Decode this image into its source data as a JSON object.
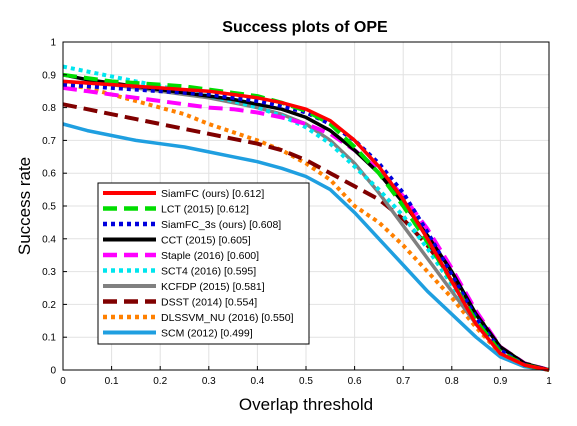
{
  "chart_data": {
    "type": "line",
    "title": "Success plots of OPE",
    "xlabel": "Overlap threshold",
    "ylabel": "Success rate",
    "xlim": [
      0,
      1
    ],
    "ylim": [
      0,
      1
    ],
    "x_ticks": [
      "0",
      "0.1",
      "0.2",
      "0.3",
      "0.4",
      "0.5",
      "0.6",
      "0.7",
      "0.8",
      "0.9",
      "1"
    ],
    "y_ticks": [
      "0",
      "0.1",
      "0.2",
      "0.3",
      "0.4",
      "0.5",
      "0.6",
      "0.7",
      "0.8",
      "0.9",
      "1"
    ],
    "grid": true,
    "legend_position": "lower-left",
    "x": [
      0,
      0.05,
      0.1,
      0.15,
      0.2,
      0.25,
      0.3,
      0.35,
      0.4,
      0.45,
      0.5,
      0.55,
      0.6,
      0.65,
      0.7,
      0.75,
      0.8,
      0.85,
      0.9,
      0.95,
      1
    ],
    "series": [
      {
        "name": "SiamFC (ours) [0.612]",
        "color": "#ff0000",
        "dash": "solid",
        "values": [
          0.88,
          0.875,
          0.87,
          0.865,
          0.86,
          0.855,
          0.85,
          0.84,
          0.83,
          0.815,
          0.795,
          0.76,
          0.7,
          0.62,
          0.52,
          0.4,
          0.27,
          0.14,
          0.05,
          0.015,
          0
        ]
      },
      {
        "name": "LCT (2015) [0.612]",
        "color": "#00dd00",
        "dash": "dash",
        "values": [
          0.9,
          0.89,
          0.88,
          0.875,
          0.87,
          0.865,
          0.855,
          0.845,
          0.835,
          0.815,
          0.79,
          0.75,
          0.68,
          0.6,
          0.5,
          0.39,
          0.27,
          0.15,
          0.055,
          0.015,
          0
        ]
      },
      {
        "name": "SiamFC_3s (ours) [0.608]",
        "color": "#0000dd",
        "dash": "dot",
        "values": [
          0.87,
          0.865,
          0.86,
          0.855,
          0.85,
          0.845,
          0.84,
          0.83,
          0.82,
          0.805,
          0.785,
          0.75,
          0.7,
          0.63,
          0.54,
          0.42,
          0.29,
          0.16,
          0.06,
          0.015,
          0
        ]
      },
      {
        "name": "CCT (2015) [0.605]",
        "color": "#000000",
        "dash": "solid",
        "values": [
          0.9,
          0.885,
          0.875,
          0.865,
          0.855,
          0.845,
          0.835,
          0.825,
          0.81,
          0.795,
          0.77,
          0.73,
          0.67,
          0.6,
          0.51,
          0.41,
          0.3,
          0.17,
          0.07,
          0.02,
          0
        ]
      },
      {
        "name": "Staple (2016) [0.600]",
        "color": "#ff00ff",
        "dash": "dash",
        "values": [
          0.86,
          0.85,
          0.84,
          0.83,
          0.82,
          0.81,
          0.8,
          0.795,
          0.785,
          0.77,
          0.75,
          0.72,
          0.67,
          0.61,
          0.53,
          0.43,
          0.31,
          0.18,
          0.07,
          0.02,
          0
        ]
      },
      {
        "name": "SCT4 (2016) [0.595]",
        "color": "#00e5ee",
        "dash": "dot",
        "values": [
          0.925,
          0.91,
          0.895,
          0.88,
          0.865,
          0.85,
          0.835,
          0.82,
          0.8,
          0.775,
          0.74,
          0.69,
          0.62,
          0.55,
          0.47,
          0.37,
          0.26,
          0.15,
          0.06,
          0.015,
          0
        ]
      },
      {
        "name": "KCFDP (2015) [0.581]",
        "color": "#808080",
        "dash": "solid",
        "values": [
          0.88,
          0.875,
          0.87,
          0.86,
          0.85,
          0.84,
          0.83,
          0.815,
          0.8,
          0.78,
          0.75,
          0.7,
          0.63,
          0.54,
          0.44,
          0.34,
          0.24,
          0.14,
          0.05,
          0.015,
          0
        ]
      },
      {
        "name": "DSST (2014) [0.554]",
        "color": "#800000",
        "dash": "dash",
        "values": [
          0.81,
          0.795,
          0.78,
          0.765,
          0.75,
          0.735,
          0.72,
          0.705,
          0.69,
          0.67,
          0.64,
          0.6,
          0.56,
          0.52,
          0.46,
          0.38,
          0.28,
          0.17,
          0.07,
          0.02,
          0
        ]
      },
      {
        "name": "DLSSVM_NU (2016) [0.550]",
        "color": "#ff8000",
        "dash": "dot",
        "values": [
          0.87,
          0.86,
          0.84,
          0.82,
          0.8,
          0.78,
          0.75,
          0.725,
          0.7,
          0.67,
          0.63,
          0.58,
          0.5,
          0.45,
          0.38,
          0.3,
          0.22,
          0.13,
          0.05,
          0.015,
          0
        ]
      },
      {
        "name": "SCM (2012) [0.499]",
        "color": "#1f9fe0",
        "dash": "solid",
        "values": [
          0.75,
          0.73,
          0.715,
          0.7,
          0.69,
          0.68,
          0.665,
          0.65,
          0.635,
          0.615,
          0.59,
          0.55,
          0.48,
          0.4,
          0.32,
          0.24,
          0.17,
          0.1,
          0.04,
          0.01,
          0
        ]
      }
    ]
  }
}
